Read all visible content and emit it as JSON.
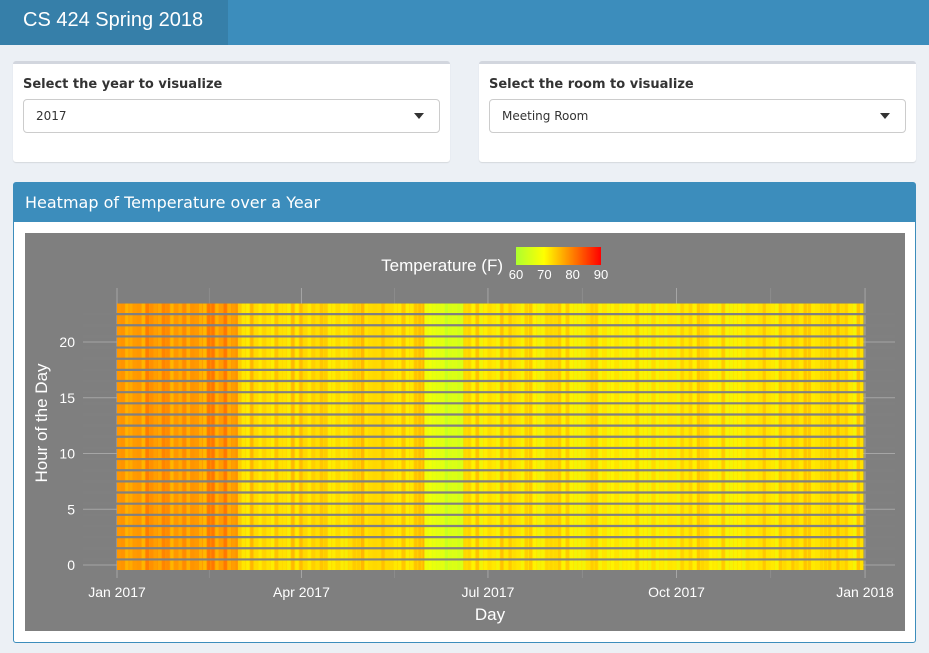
{
  "header": {
    "title": "CS 424 Spring 2018"
  },
  "year_select": {
    "label": "Select the year to visualize",
    "value": "2017"
  },
  "room_select": {
    "label": "Select the room to visualize",
    "value": "Meeting Room"
  },
  "panel": {
    "title": "Heatmap of Temperature over a Year"
  },
  "colors": {
    "header_bg": "#3c8dbc",
    "brand_bg": "#367fa9",
    "plot_bg": "#7f7f7f",
    "scale_low": "#adff2f",
    "scale_mid": "#ffff00",
    "scale_high": "#ff0000"
  },
  "chart_data": {
    "type": "heatmap",
    "title": "",
    "xlabel": "Day",
    "ylabel": "Hour of the Day",
    "x_ticks": [
      "Jan 2017",
      "Apr 2017",
      "Jul 2017",
      "Oct 2017",
      "Jan 2018"
    ],
    "y_ticks": [
      0,
      5,
      10,
      15,
      20
    ],
    "ylim": [
      0,
      23
    ],
    "legend": {
      "title": "Temperature (F)",
      "ticks": [
        60,
        70,
        80,
        90
      ],
      "placement": "top"
    },
    "x_range": [
      "2017-01-01",
      "2017-12-31"
    ],
    "color_range": [
      60,
      90
    ],
    "series": [
      {
        "period": "2017-01-01 to 2017-03-01",
        "temperature_f": 78
      },
      {
        "period": "2017-03-01 to 2017-05-31",
        "temperature_f": 73
      },
      {
        "period": "2017-05-31 to 2017-06-19",
        "temperature_f": 66
      },
      {
        "period": "2017-06-19 to 2017-12-31",
        "temperature_f": 72
      }
    ]
  }
}
